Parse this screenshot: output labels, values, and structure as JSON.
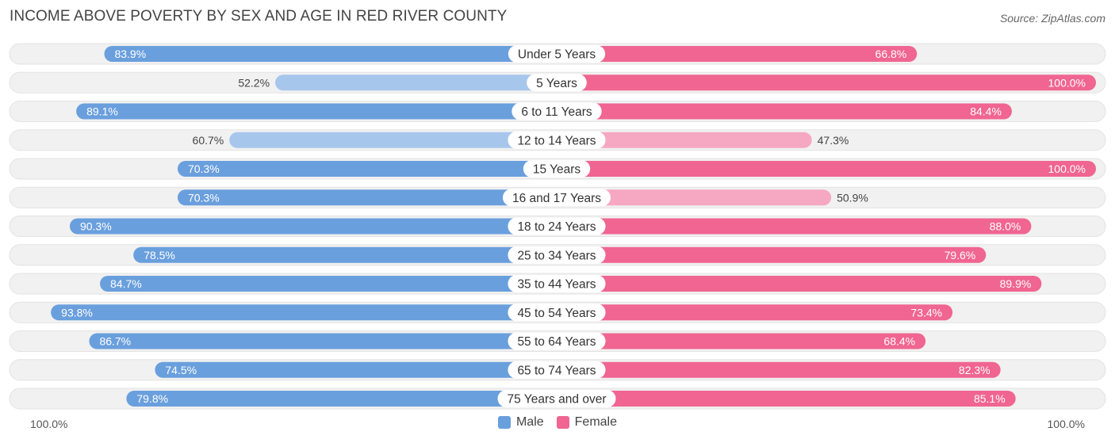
{
  "title": "INCOME ABOVE POVERTY BY SEX AND AGE IN RED RIVER COUNTY",
  "source": "Source: ZipAtlas.com",
  "colors": {
    "male_strong": "#6a9fdd",
    "male_light": "#a7c6ec",
    "female_strong": "#f06592",
    "female_light": "#f6a7c1",
    "track": "#f1f1f1"
  },
  "chart_data": {
    "type": "bar",
    "orientation": "horizontal-diverging",
    "title": "INCOME ABOVE POVERTY BY SEX AND AGE IN RED RIVER COUNTY",
    "categories": [
      "Under 5 Years",
      "5 Years",
      "6 to 11 Years",
      "12 to 14 Years",
      "15 Years",
      "16 and 17 Years",
      "18 to 24 Years",
      "25 to 34 Years",
      "35 to 44 Years",
      "45 to 54 Years",
      "55 to 64 Years",
      "65 to 74 Years",
      "75 Years and over"
    ],
    "series": [
      {
        "name": "Male",
        "values": [
          83.9,
          52.2,
          89.1,
          60.7,
          70.3,
          70.3,
          90.3,
          78.5,
          84.7,
          93.8,
          86.7,
          74.5,
          79.8
        ],
        "labels": [
          "83.9%",
          "52.2%",
          "89.1%",
          "60.7%",
          "70.3%",
          "70.3%",
          "90.3%",
          "78.5%",
          "84.7%",
          "93.8%",
          "86.7%",
          "74.5%",
          "79.8%"
        ]
      },
      {
        "name": "Female",
        "values": [
          66.8,
          100.0,
          84.4,
          47.3,
          100.0,
          50.9,
          88.0,
          79.6,
          89.9,
          73.4,
          68.4,
          82.3,
          85.1
        ],
        "labels": [
          "66.8%",
          "100.0%",
          "84.4%",
          "47.3%",
          "100.0%",
          "50.9%",
          "88.0%",
          "79.6%",
          "89.9%",
          "73.4%",
          "68.4%",
          "82.3%",
          "85.1%"
        ]
      }
    ],
    "xlim": [
      0,
      100
    ],
    "axis_left_label": "100.0%",
    "axis_right_label": "100.0%",
    "legend": [
      "Male",
      "Female"
    ],
    "legend_position": "bottom-center"
  }
}
